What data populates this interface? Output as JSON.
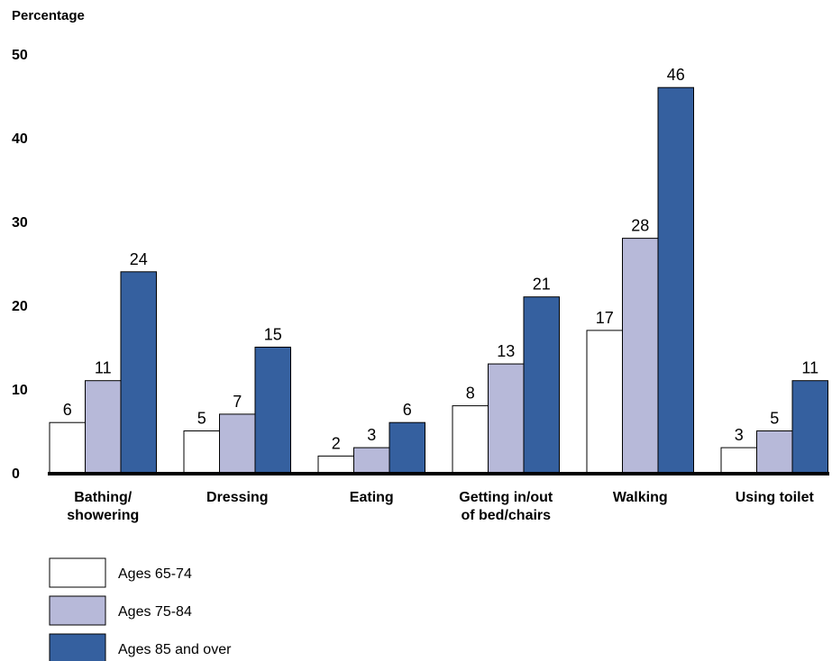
{
  "chart_data": {
    "type": "bar",
    "ylabel": "Percentage",
    "ylim": [
      0,
      50
    ],
    "yticks": [
      0,
      10,
      20,
      30,
      40,
      50
    ],
    "grid": false,
    "legend_position": "bottom-left",
    "categories": [
      [
        "Bathing/",
        "showering"
      ],
      [
        "Dressing"
      ],
      [
        "Eating"
      ],
      [
        "Getting in/out",
        "of bed/chairs"
      ],
      [
        "Walking"
      ],
      [
        "Using toilet"
      ]
    ],
    "series": [
      {
        "name": "Ages 65-74",
        "color": "#ffffff",
        "values": [
          6,
          5,
          2,
          8,
          17,
          3
        ]
      },
      {
        "name": "Ages 75-84",
        "color": "#b7b9d9",
        "values": [
          11,
          7,
          3,
          13,
          28,
          5
        ]
      },
      {
        "name": "Ages 85 and over",
        "color": "#35609f",
        "values": [
          24,
          15,
          6,
          21,
          46,
          11
        ]
      }
    ]
  }
}
